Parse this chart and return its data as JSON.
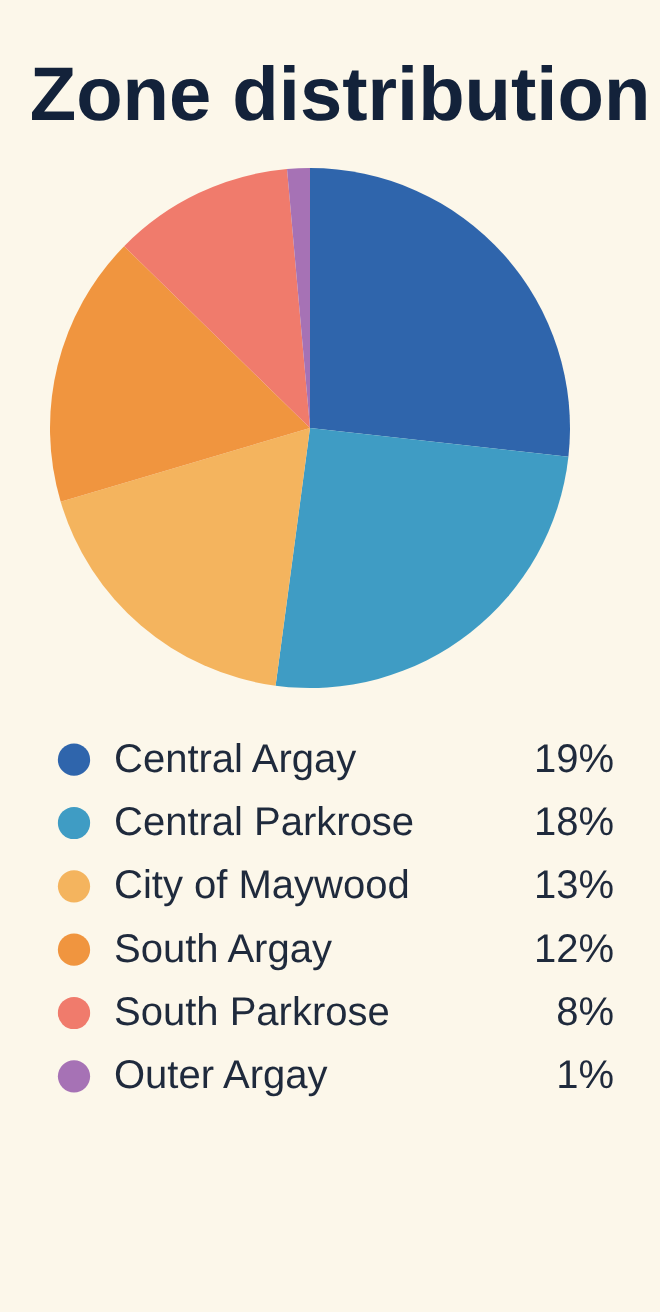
{
  "chart_data": {
    "type": "pie",
    "title": "Zone distribution",
    "categories": [
      "Central Argay",
      "Central Parkrose",
      "City of Maywood",
      "South Argay",
      "South Parkrose",
      "Outer Argay"
    ],
    "values": [
      19,
      18,
      13,
      12,
      8,
      1
    ],
    "value_labels": [
      "19%",
      "18%",
      "13%",
      "12%",
      "8%",
      "1%"
    ],
    "colors": [
      "#2f65ac",
      "#3f9cc4",
      "#f4b45e",
      "#f0953f",
      "#f07b6c",
      "#a672b5"
    ],
    "legend": "bottom"
  }
}
